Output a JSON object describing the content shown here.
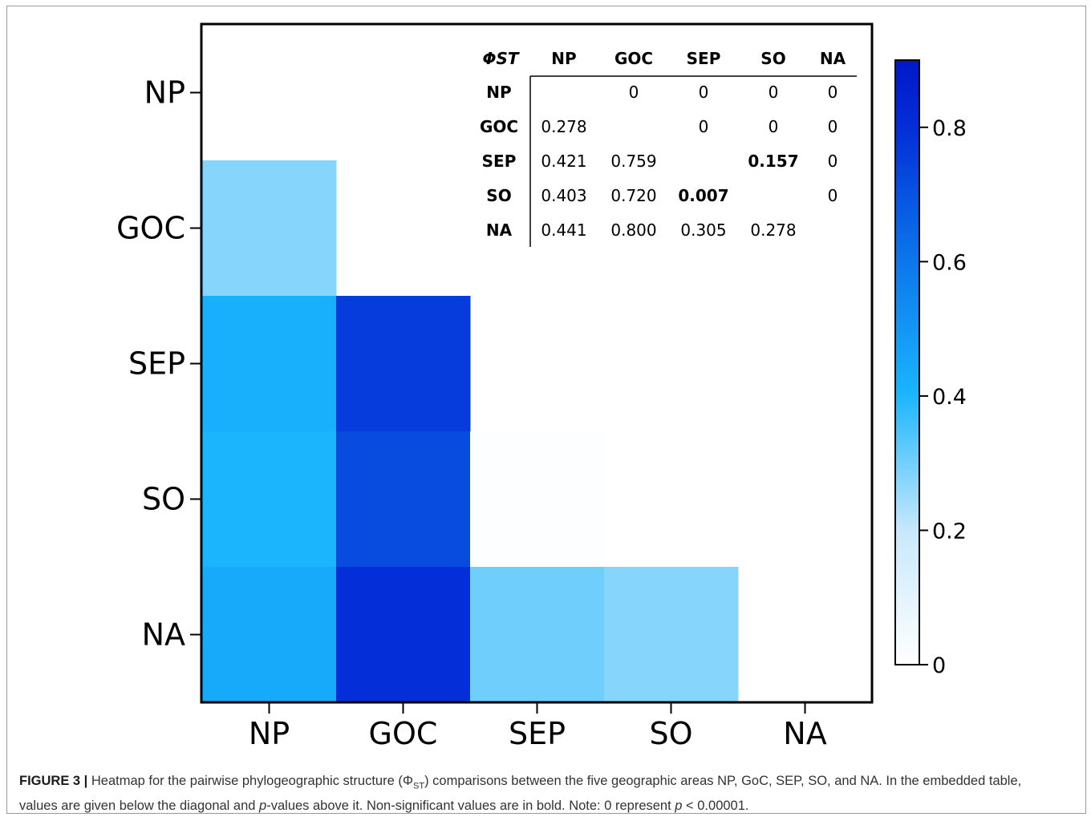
{
  "chart_data": {
    "type": "heatmap",
    "rows": [
      "NP",
      "GOC",
      "SEP",
      "SO",
      "NA"
    ],
    "columns": [
      "NP",
      "GOC",
      "SEP",
      "SO",
      "NA"
    ],
    "values": [
      [
        null,
        null,
        null,
        null,
        null
      ],
      [
        0.278,
        null,
        null,
        null,
        null
      ],
      [
        0.421,
        0.759,
        null,
        null,
        null
      ],
      [
        0.403,
        0.72,
        0.007,
        null,
        null
      ],
      [
        0.441,
        0.8,
        0.305,
        0.278,
        null
      ]
    ],
    "colorbar": {
      "min": 0,
      "max": 0.9,
      "ticks": [
        "0",
        "0.2",
        "0.4",
        "0.6",
        "0.8"
      ],
      "tick_values": [
        0,
        0.2,
        0.4,
        0.6,
        0.8
      ]
    },
    "x_tick_labels": [
      "NP",
      "GOC",
      "SEP",
      "SO",
      "NA"
    ],
    "y_tick_labels": [
      "NP",
      "GOC",
      "SEP",
      "SO",
      "NA"
    ],
    "embedded_table": {
      "corner": "ΦST",
      "headers": [
        "NP",
        "GOC",
        "SEP",
        "SO",
        "NA"
      ],
      "rows": [
        {
          "label": "NP",
          "cells": [
            "",
            "0",
            "0",
            "0",
            "0"
          ]
        },
        {
          "label": "GOC",
          "cells": [
            "0.278",
            "",
            "0",
            "0",
            "0"
          ]
        },
        {
          "label": "SEP",
          "cells": [
            "0.421",
            "0.759",
            "",
            "0.157",
            "0"
          ]
        },
        {
          "label": "SO",
          "cells": [
            "0.403",
            "0.720",
            "0.007",
            "",
            "0"
          ]
        },
        {
          "label": "NA",
          "cells": [
            "0.441",
            "0.800",
            "0.305",
            "0.278",
            ""
          ]
        }
      ],
      "bold_cells": [
        "2-3",
        "3-2"
      ]
    }
  },
  "caption": {
    "label": "FIGURE 3 |",
    "text_1": " Heatmap for the pairwise phylogeographic structure (Φ",
    "sub_1": "ST",
    "text_2": ") comparisons between the five geographic areas NP, GoC, SEP, SO, and NA. In the embedded table, values are given below the diagonal and ",
    "italic_p1": "p",
    "text_3": "-values above it. Non-significant values are in bold. Note: 0 represent ",
    "italic_p2": "p",
    "text_4": " < 0.00001."
  }
}
